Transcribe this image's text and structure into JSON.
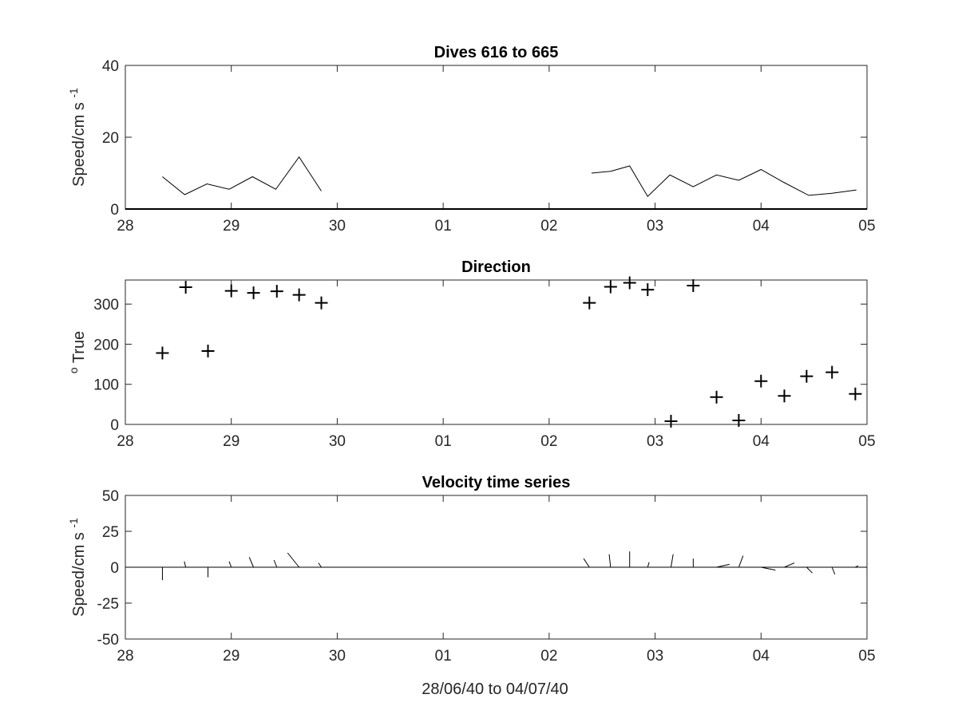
{
  "figure": {
    "xlabel": "28/06/40 to 04/07/40"
  },
  "chart_data": [
    {
      "type": "line",
      "title": "Dives 616 to 665",
      "ylabel": "Speed/cm s",
      "ylabel_superscript": "-1",
      "xlim": [
        0,
        7
      ],
      "ylim": [
        0,
        40
      ],
      "x_ticks": [
        0,
        1,
        2,
        3,
        4,
        5,
        6,
        7
      ],
      "x_tick_labels": [
        "28",
        "29",
        "30",
        "01",
        "02",
        "03",
        "04",
        "05"
      ],
      "y_ticks": [
        0,
        20,
        40
      ],
      "y_tick_labels": [
        "0",
        "20",
        "40"
      ],
      "grid": false,
      "series": [
        {
          "segments": [
            [
              [
                0.35,
                9
              ],
              [
                0.56,
                4
              ],
              [
                0.77,
                7
              ],
              [
                0.98,
                5.5
              ],
              [
                1.2,
                9
              ],
              [
                1.42,
                5.5
              ],
              [
                1.64,
                14.5
              ],
              [
                1.85,
                5
              ]
            ],
            [
              [
                4.4,
                10
              ],
              [
                4.58,
                10.5
              ],
              [
                4.76,
                12
              ],
              [
                4.93,
                3.5
              ],
              [
                5.14,
                9.5
              ],
              [
                5.36,
                6.2
              ],
              [
                5.58,
                9.5
              ],
              [
                5.79,
                8
              ],
              [
                6.0,
                11
              ],
              [
                6.21,
                7.5
              ],
              [
                6.45,
                3.8
              ],
              [
                6.67,
                4.4
              ],
              [
                6.9,
                5.3
              ]
            ]
          ]
        }
      ]
    },
    {
      "type": "scatter",
      "title": "Direction",
      "ylabel": "True",
      "ylabel_superscript": "o",
      "xlim": [
        0,
        7
      ],
      "ylim": [
        0,
        360
      ],
      "x_ticks": [
        0,
        1,
        2,
        3,
        4,
        5,
        6,
        7
      ],
      "x_tick_labels": [
        "28",
        "29",
        "30",
        "01",
        "02",
        "03",
        "04",
        "05"
      ],
      "y_ticks": [
        0,
        100,
        200,
        300
      ],
      "y_tick_labels": [
        "0",
        "100",
        "200",
        "300"
      ],
      "grid": false,
      "marker": "+",
      "points": [
        [
          0.35,
          178
        ],
        [
          0.57,
          342
        ],
        [
          0.78,
          183
        ],
        [
          1.0,
          333
        ],
        [
          1.21,
          328
        ],
        [
          1.43,
          332
        ],
        [
          1.64,
          323
        ],
        [
          1.85,
          303
        ],
        [
          4.38,
          303
        ],
        [
          4.58,
          343
        ],
        [
          4.76,
          353
        ],
        [
          4.93,
          336
        ],
        [
          5.15,
          8
        ],
        [
          5.36,
          346
        ],
        [
          5.58,
          68
        ],
        [
          5.79,
          10
        ],
        [
          6.0,
          108
        ],
        [
          6.22,
          71
        ],
        [
          6.43,
          120
        ],
        [
          6.67,
          130
        ],
        [
          6.89,
          76
        ]
      ]
    },
    {
      "type": "quiver",
      "title": "Velocity time series",
      "ylabel": "Speed/cm s",
      "ylabel_superscript": "-1",
      "xlim": [
        0,
        7
      ],
      "ylim": [
        -50,
        50
      ],
      "x_ticks": [
        0,
        1,
        2,
        3,
        4,
        5,
        6,
        7
      ],
      "x_tick_labels": [
        "28",
        "29",
        "30",
        "01",
        "02",
        "03",
        "04",
        "05"
      ],
      "y_ticks": [
        -50,
        -25,
        0,
        25,
        50
      ],
      "y_tick_labels": [
        "-50",
        "-25",
        "0",
        "25",
        "50"
      ],
      "grid": false,
      "zero_line": true,
      "vectors": [
        [
          0.35,
          0,
          -9
        ],
        [
          0.57,
          -1,
          4
        ],
        [
          0.78,
          0,
          -7
        ],
        [
          1.0,
          -1.5,
          4
        ],
        [
          1.21,
          -3,
          7
        ],
        [
          1.43,
          -2,
          5
        ],
        [
          1.64,
          -8,
          10
        ],
        [
          1.85,
          -2,
          3
        ],
        [
          4.38,
          -4,
          6
        ],
        [
          4.58,
          -1,
          9
        ],
        [
          4.76,
          0,
          11
        ],
        [
          4.93,
          1,
          3.5
        ],
        [
          5.15,
          1.5,
          9
        ],
        [
          5.36,
          0,
          6
        ],
        [
          5.58,
          9,
          2
        ],
        [
          5.79,
          3,
          8
        ],
        [
          6.0,
          10,
          -2
        ],
        [
          6.22,
          7,
          3
        ],
        [
          6.43,
          4,
          -4
        ],
        [
          6.67,
          2,
          -5
        ],
        [
          6.89,
          2,
          1
        ]
      ]
    }
  ]
}
